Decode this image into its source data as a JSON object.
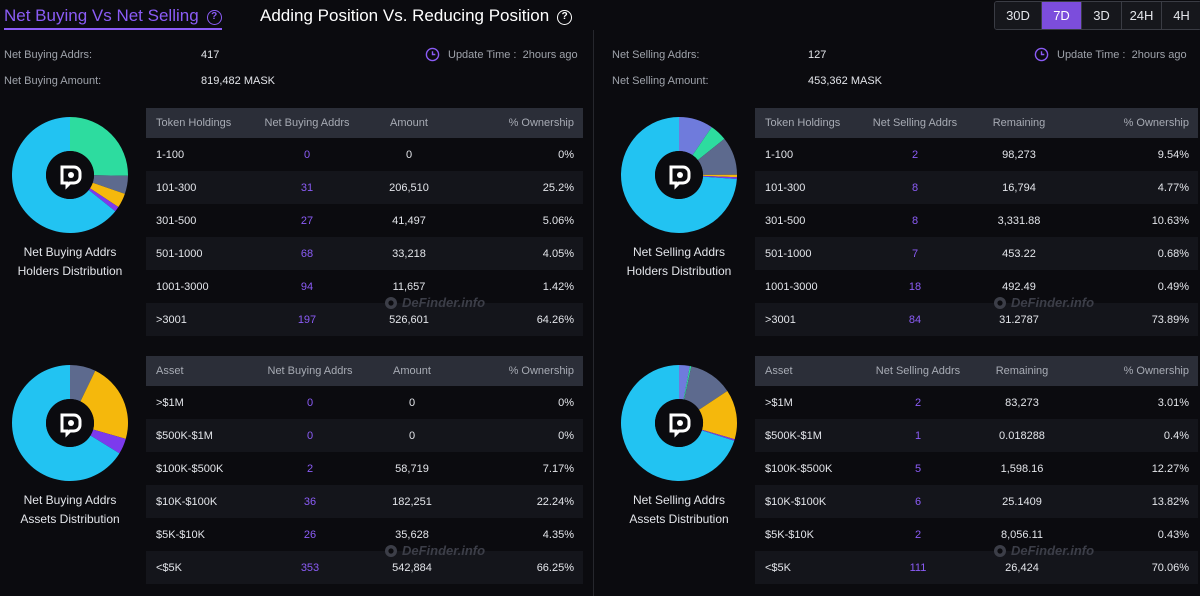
{
  "header": {
    "tab_active": "Net Buying Vs Net Selling",
    "tab_inactive": "Adding Position Vs. Reducing Position",
    "help": "?"
  },
  "timeframes": [
    {
      "label": "30D",
      "active": false
    },
    {
      "label": "7D",
      "active": true
    },
    {
      "label": "3D",
      "active": false
    },
    {
      "label": "24H",
      "active": false
    },
    {
      "label": "4H",
      "active": false
    }
  ],
  "colors": {
    "accent": "#8b5cf6",
    "cyan": "#22c3f2",
    "green": "#2ddc9f",
    "slate": "#5d6a8e",
    "gold": "#f5b80c",
    "purple": "#7c3aed",
    "blue": "#6f7bdc"
  },
  "buying": {
    "addrs_label": "Net Buying Addrs:",
    "addrs_value": "417",
    "amount_label": "Net Buying Amount:",
    "amount_value": "819,482 MASK",
    "update_label": "Update Time :",
    "update_value": "2hours ago",
    "holders_caption": [
      "Net Buying Addrs",
      "Holders Distribution"
    ],
    "assets_caption": [
      "Net Buying Addrs",
      "Assets Distribution"
    ],
    "holders_table": {
      "headers": [
        "Token Holdings",
        "Net Buying Addrs",
        "Amount",
        "% Ownership"
      ],
      "rows": [
        [
          "1-100",
          "0",
          "0",
          "0%"
        ],
        [
          "101-300",
          "31",
          "206,510",
          "25.2%"
        ],
        [
          "301-500",
          "27",
          "41,497",
          "5.06%"
        ],
        [
          "501-1000",
          "68",
          "33,218",
          "4.05%"
        ],
        [
          "1001-3000",
          "94",
          "11,657",
          "1.42%"
        ],
        [
          ">3001",
          "197",
          "526,601",
          "64.26%"
        ]
      ]
    },
    "assets_table": {
      "headers": [
        "Asset",
        "Net Buying Addrs",
        "Amount",
        "% Ownership"
      ],
      "rows": [
        [
          ">$1M",
          "0",
          "0",
          "0%"
        ],
        [
          "$500K-$1M",
          "0",
          "0",
          "0%"
        ],
        [
          "$100K-$500K",
          "2",
          "58,719",
          "7.17%"
        ],
        [
          "$10K-$100K",
          "36",
          "182,251",
          "22.24%"
        ],
        [
          "$5K-$10K",
          "26",
          "35,628",
          "4.35%"
        ],
        [
          "<$5K",
          "353",
          "542,884",
          "66.25%"
        ]
      ]
    },
    "holders_pie": [
      {
        "value": 25.2,
        "color": "#2ddc9f"
      },
      {
        "value": 5.06,
        "color": "#5d6a8e"
      },
      {
        "value": 4.05,
        "color": "#f5b80c"
      },
      {
        "value": 1.42,
        "color": "#7c3aed"
      },
      {
        "value": 64.26,
        "color": "#22c3f2"
      }
    ],
    "assets_pie": [
      {
        "value": 7.17,
        "color": "#5d6a8e"
      },
      {
        "value": 22.24,
        "color": "#f5b80c"
      },
      {
        "value": 4.35,
        "color": "#7c3aed"
      },
      {
        "value": 66.25,
        "color": "#22c3f2"
      }
    ]
  },
  "selling": {
    "addrs_label": "Net Selling Addrs:",
    "addrs_value": "127",
    "amount_label": "Net Selling Amount:",
    "amount_value": "453,362 MASK",
    "update_label": "Update Time :",
    "update_value": "2hours ago",
    "holders_caption": [
      "Net Selling Addrs",
      "Holders Distribution"
    ],
    "assets_caption": [
      "Net Selling Addrs",
      "Assets Distribution"
    ],
    "holders_table": {
      "headers": [
        "Token Holdings",
        "Net Selling Addrs",
        "Remaining",
        "% Ownership"
      ],
      "rows": [
        [
          "1-100",
          "2",
          "98,273",
          "9.54%"
        ],
        [
          "101-300",
          "8",
          "16,794",
          "4.77%"
        ],
        [
          "301-500",
          "8",
          "3,331.88",
          "10.63%"
        ],
        [
          "501-1000",
          "7",
          "453.22",
          "0.68%"
        ],
        [
          "1001-3000",
          "18",
          "492.49",
          "0.49%"
        ],
        [
          ">3001",
          "84",
          "31.2787",
          "73.89%"
        ]
      ]
    },
    "assets_table": {
      "headers": [
        "Asset",
        "Net Selling Addrs",
        "Remaining",
        "% Ownership"
      ],
      "rows": [
        [
          ">$1M",
          "2",
          "83,273",
          "3.01%"
        ],
        [
          "$500K-$1M",
          "1",
          "0.018288",
          "0.4%"
        ],
        [
          "$100K-$500K",
          "5",
          "1,598.16",
          "12.27%"
        ],
        [
          "$10K-$100K",
          "6",
          "25.1409",
          "13.82%"
        ],
        [
          "$5K-$10K",
          "2",
          "8,056.11",
          "0.43%"
        ],
        [
          "<$5K",
          "111",
          "26,424",
          "70.06%"
        ]
      ]
    },
    "holders_pie": [
      {
        "value": 9.54,
        "color": "#6f7bdc"
      },
      {
        "value": 4.77,
        "color": "#2ddc9f"
      },
      {
        "value": 10.63,
        "color": "#5d6a8e"
      },
      {
        "value": 0.68,
        "color": "#f5b80c"
      },
      {
        "value": 0.49,
        "color": "#7c3aed"
      },
      {
        "value": 73.89,
        "color": "#22c3f2"
      }
    ],
    "assets_pie": [
      {
        "value": 3.01,
        "color": "#6f7bdc"
      },
      {
        "value": 0.4,
        "color": "#2ddc9f"
      },
      {
        "value": 12.27,
        "color": "#5d6a8e"
      },
      {
        "value": 13.82,
        "color": "#f5b80c"
      },
      {
        "value": 0.43,
        "color": "#7c3aed"
      },
      {
        "value": 70.06,
        "color": "#22c3f2"
      }
    ]
  },
  "watermark": "DeFinder.info"
}
